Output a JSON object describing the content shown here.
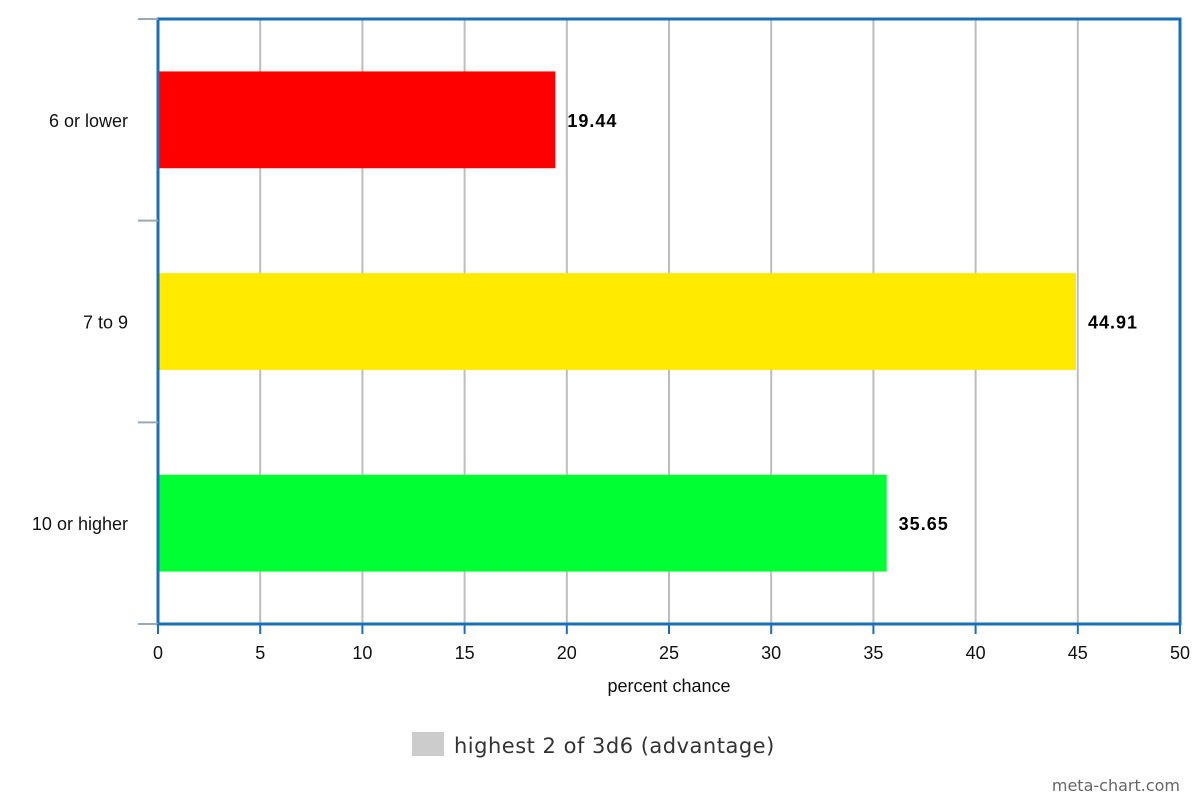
{
  "chart_data": {
    "type": "bar",
    "orientation": "horizontal",
    "categories": [
      "6 or lower",
      "7 to 9",
      "10 or higher"
    ],
    "series": [
      {
        "name": "highest 2 of 3d6 (advantage)",
        "values": [
          19.44,
          44.91,
          35.65
        ],
        "data_labels": [
          "19.44",
          "44.91",
          "35.65"
        ],
        "colors": [
          "#ff0000",
          "#ffea00",
          "#00ff33"
        ]
      }
    ],
    "xlabel": "percent chance",
    "ylabel": "",
    "xlim": [
      0,
      50
    ],
    "xticks": [
      0,
      5,
      10,
      15,
      20,
      25,
      30,
      35,
      40,
      45,
      50
    ],
    "grid": true,
    "legend_position": "bottom",
    "legend_color": "#cccccc",
    "frame_color": "#1a6fba"
  },
  "watermark": "meta-chart.com"
}
